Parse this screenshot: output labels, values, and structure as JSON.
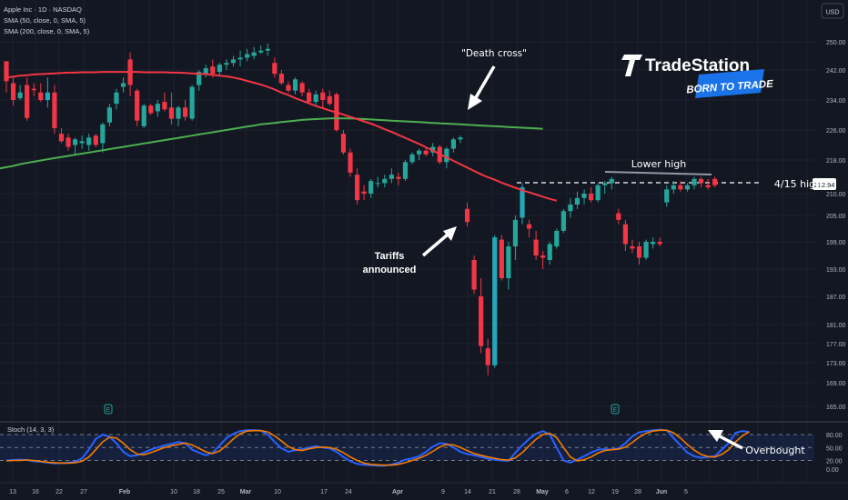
{
  "header": {
    "symbol": "Apple Inc · 1D · NASDAQ",
    "sma50": "SMA (50, close, 0, SMA, 5)",
    "sma200": "SMA (200, close, 0, SMA, 5)",
    "currency": "USD"
  },
  "brand": {
    "name": "TradeStation",
    "tagline": "BORN TO TRADE"
  },
  "annotations": {
    "death_cross": "\"Death cross\"",
    "tariffs_1": "Tariffs",
    "tariffs_2": "announced",
    "lower_high": "Lower high",
    "high_415": "4/15 high",
    "overbought": "Overbought"
  },
  "last_price": "212.94",
  "earnings_marker": "E",
  "colors": {
    "up": "#26a69a",
    "down": "#f23645",
    "teal": "#089981",
    "sma50": "#f23645",
    "sma200": "#4caf50",
    "stoch_k": "#2962ff",
    "stoch_d": "#f57c00"
  },
  "chart_data": {
    "type": "candlestick",
    "y_ticks": [
      250.0,
      242.0,
      234.0,
      226.0,
      218.0,
      210.0,
      205.0,
      199.0,
      193.0,
      187.0,
      181.0,
      177.0,
      173.0,
      169.0,
      165.0
    ],
    "x_ticks": [
      "13",
      "16",
      "22",
      "27",
      "Feb",
      "10",
      "18",
      "25",
      "Mar",
      "10",
      "17",
      "24",
      "Apr",
      "9",
      "14",
      "21",
      "28",
      "May",
      "6",
      "12",
      "19",
      "28",
      "Jun",
      "5"
    ],
    "ohlc": [
      [
        244.5,
        244.0,
        236.0,
        239.0
      ],
      [
        238.5,
        240.0,
        232.5,
        234.0
      ],
      [
        234.5,
        238.0,
        234.0,
        236.0
      ],
      [
        238.0,
        240.0,
        228.5,
        229.2
      ],
      [
        237.0,
        238.5,
        235.0,
        236.6
      ],
      [
        236.0,
        238.5,
        233.5,
        234.0
      ],
      [
        234.0,
        240.0,
        232.0,
        236.0
      ],
      [
        236.0,
        238.0,
        225.0,
        226.5
      ],
      [
        225.0,
        226.5,
        222.5,
        223.0
      ],
      [
        224.0,
        225.0,
        220.5,
        221.5
      ],
      [
        222.0,
        224.0,
        219.5,
        223.5
      ],
      [
        222.5,
        224.5,
        221.0,
        223.0
      ],
      [
        222.0,
        225.0,
        220.5,
        224.0
      ],
      [
        224.5,
        225.0,
        221.5,
        222.0
      ],
      [
        222.5,
        228.0,
        220.0,
        227.5
      ],
      [
        228.0,
        233.0,
        227.0,
        232.0
      ],
      [
        233.0,
        237.0,
        231.5,
        236.0
      ],
      [
        237.5,
        240.0,
        236.0,
        238.5
      ],
      [
        245.0,
        247.0,
        235.0,
        238.0
      ],
      [
        236.5,
        237.0,
        227.0,
        228.5
      ],
      [
        227.0,
        233.0,
        226.5,
        232.5
      ],
      [
        232.5,
        233.0,
        230.0,
        230.5
      ],
      [
        231.0,
        234.0,
        229.5,
        233.0
      ],
      [
        233.5,
        236.0,
        231.0,
        231.5
      ],
      [
        232.0,
        236.0,
        227.5,
        229.0
      ],
      [
        229.0,
        232.5,
        227.0,
        232.0
      ],
      [
        232.0,
        234.0,
        228.5,
        229.5
      ],
      [
        229.0,
        238.0,
        228.5,
        237.5
      ],
      [
        238.0,
        242.0,
        236.5,
        241.5
      ],
      [
        241.0,
        243.5,
        240.0,
        242.5
      ],
      [
        243.0,
        245.0,
        240.0,
        241.0
      ],
      [
        241.5,
        244.0,
        240.5,
        243.5
      ],
      [
        243.5,
        245.0,
        242.0,
        244.0
      ],
      [
        244.0,
        246.0,
        243.0,
        245.0
      ],
      [
        245.0,
        247.5,
        243.0,
        245.5
      ],
      [
        245.5,
        248.0,
        244.5,
        246.5
      ],
      [
        246.0,
        248.5,
        245.0,
        247.0
      ],
      [
        247.0,
        249.0,
        246.5,
        247.5
      ],
      [
        247.5,
        249.5,
        246.0,
        248.0
      ],
      [
        244.0,
        245.5,
        240.0,
        241.0
      ],
      [
        241.0,
        242.0,
        238.0,
        238.5
      ],
      [
        238.0,
        239.0,
        236.0,
        236.5
      ],
      [
        236.5,
        240.0,
        235.5,
        239.5
      ],
      [
        238.5,
        239.0,
        235.0,
        236.0
      ],
      [
        236.0,
        237.0,
        233.0,
        233.5
      ],
      [
        233.5,
        236.5,
        232.5,
        235.5
      ],
      [
        236.0,
        237.0,
        232.0,
        234.0
      ],
      [
        235.0,
        236.5,
        232.5,
        233.0
      ],
      [
        235.5,
        236.0,
        225.5,
        226.0
      ],
      [
        225.0,
        226.0,
        219.5,
        220.0
      ],
      [
        220.0,
        221.0,
        214.0,
        215.0
      ],
      [
        214.5,
        216.0,
        207.5,
        208.5
      ],
      [
        210.5,
        212.0,
        208.5,
        210.0
      ],
      [
        210.0,
        213.5,
        209.0,
        213.0
      ],
      [
        212.5,
        214.0,
        211.5,
        212.5
      ],
      [
        212.5,
        214.5,
        211.5,
        213.5
      ],
      [
        213.5,
        216.0,
        212.5,
        214.5
      ],
      [
        214.0,
        215.0,
        212.0,
        213.5
      ],
      [
        213.5,
        218.0,
        213.0,
        217.5
      ],
      [
        217.5,
        220.0,
        217.0,
        219.5
      ],
      [
        219.5,
        221.0,
        218.0,
        220.5
      ],
      [
        220.5,
        221.5,
        219.0,
        219.5
      ],
      [
        220.0,
        222.5,
        219.0,
        221.5
      ],
      [
        221.5,
        222.0,
        217.0,
        217.5
      ],
      [
        217.5,
        221.5,
        216.0,
        221.0
      ],
      [
        221.0,
        224.0,
        220.0,
        223.5
      ],
      [
        223.5,
        224.5,
        222.5,
        224.0
      ],
      [
        206.5,
        208.0,
        202.5,
        203.5
      ],
      [
        195.0,
        196.0,
        187.5,
        188.5
      ],
      [
        187.0,
        191.0,
        175.0,
        176.5
      ],
      [
        176.0,
        178.0,
        170.5,
        172.5
      ],
      [
        172.5,
        200.5,
        172.0,
        200.0
      ],
      [
        199.5,
        200.5,
        190.5,
        191.0
      ],
      [
        191.0,
        199.0,
        188.5,
        198.0
      ],
      [
        198.0,
        205.0,
        195.0,
        204.0
      ],
      [
        204.5,
        212.5,
        203.0,
        211.5
      ],
      [
        203.0,
        204.0,
        200.0,
        202.0
      ],
      [
        199.5,
        201.5,
        195.0,
        196.0
      ],
      [
        196.0,
        197.0,
        193.0,
        195.5
      ],
      [
        195.0,
        199.0,
        194.0,
        198.5
      ],
      [
        198.0,
        202.0,
        197.5,
        201.5
      ],
      [
        201.5,
        206.5,
        201.0,
        206.0
      ],
      [
        206.0,
        209.0,
        204.5,
        207.5
      ],
      [
        207.5,
        210.5,
        206.5,
        209.0
      ],
      [
        209.0,
        211.0,
        207.5,
        210.0
      ],
      [
        210.0,
        211.5,
        208.0,
        208.5
      ],
      [
        208.5,
        212.5,
        208.0,
        212.0
      ],
      [
        212.0,
        213.0,
        210.0,
        212.5
      ],
      [
        212.5,
        214.0,
        211.0,
        213.5
      ],
      [
        205.5,
        206.5,
        203.0,
        204.0
      ],
      [
        203.0,
        204.0,
        197.0,
        198.5
      ],
      [
        198.0,
        199.5,
        196.5,
        197.5
      ],
      [
        198.0,
        199.0,
        194.0,
        195.5
      ],
      [
        195.5,
        199.5,
        195.0,
        199.0
      ],
      [
        198.5,
        200.0,
        197.5,
        199.0
      ],
      [
        199.0,
        200.0,
        198.0,
        198.5
      ],
      [
        208.0,
        212.0,
        207.0,
        211.0
      ],
      [
        211.0,
        213.0,
        210.0,
        212.0
      ],
      [
        212.0,
        213.0,
        210.5,
        211.0
      ],
      [
        211.0,
        212.5,
        210.5,
        212.0
      ],
      [
        212.0,
        214.0,
        211.0,
        213.5
      ],
      [
        213.5,
        214.0,
        211.5,
        212.5
      ],
      [
        212.0,
        213.5,
        211.0,
        211.5
      ],
      [
        213.5,
        214.0,
        211.5,
        212.0
      ]
    ],
    "sma50": [
      240.0,
      240.2,
      240.5,
      240.6,
      240.8,
      240.9,
      241.0,
      241.1,
      241.2,
      241.3,
      241.3,
      241.4,
      241.4,
      241.4,
      241.5,
      241.5,
      241.5,
      241.5,
      241.5,
      241.5,
      241.4,
      241.4,
      241.4,
      241.4,
      241.3,
      241.3,
      241.2,
      241.1,
      241.0,
      240.9,
      240.7,
      240.5,
      240.3,
      240.0,
      239.6,
      239.1,
      238.6,
      238.1,
      237.5,
      236.8,
      236.0,
      235.3,
      234.5,
      233.8,
      233.1,
      232.4,
      231.8,
      231.2,
      230.7,
      230.1,
      229.5,
      228.9,
      228.3,
      227.7,
      227.0,
      226.2,
      225.5,
      224.7,
      223.9,
      223.1,
      222.3,
      221.4,
      220.5,
      219.6,
      218.7,
      217.8,
      217.0,
      216.2,
      215.4,
      214.6,
      213.9,
      213.3,
      212.6,
      212.0,
      211.4,
      210.8,
      210.3,
      209.8,
      209.3,
      208.8,
      208.4
    ],
    "sma200": [
      216.0,
      216.3,
      216.6,
      217.0,
      217.3,
      217.6,
      217.9,
      218.2,
      218.5,
      218.8,
      219.1,
      219.4,
      219.7,
      220.0,
      220.3,
      220.6,
      220.9,
      221.2,
      221.5,
      221.8,
      222.1,
      222.4,
      222.7,
      223.0,
      223.3,
      223.6,
      223.9,
      224.2,
      224.5,
      224.8,
      225.1,
      225.4,
      225.7,
      226.0,
      226.3,
      226.6,
      226.9,
      227.2,
      227.5,
      227.7,
      227.9,
      228.1,
      228.3,
      228.5,
      228.7,
      228.8,
      228.9,
      229.0,
      229.1,
      229.1,
      229.1,
      229.1,
      229.0,
      228.9,
      228.8,
      228.7,
      228.6,
      228.5,
      228.4,
      228.3,
      228.2,
      228.1,
      228.0,
      227.9,
      227.8,
      227.7,
      227.6,
      227.5,
      227.4,
      227.3,
      227.2,
      227.1,
      227.0,
      226.9,
      226.8,
      226.7,
      226.6,
      226.5,
      226.4,
      226.3
    ],
    "indicator": {
      "name": "Stoch (14, 3, 3)",
      "y_ticks": [
        80.0,
        50.0,
        20.0,
        0.0
      ],
      "k": [
        20,
        21,
        22,
        21,
        18,
        17,
        15,
        13,
        14,
        15,
        17,
        25,
        45,
        70,
        80,
        75,
        60,
        40,
        30,
        32,
        38,
        45,
        50,
        55,
        58,
        63,
        60,
        45,
        38,
        32,
        38,
        55,
        72,
        82,
        88,
        90,
        90,
        89,
        80,
        63,
        48,
        40,
        44,
        46,
        50,
        53,
        50,
        48,
        40,
        28,
        18,
        12,
        10,
        9,
        8,
        8,
        11,
        15,
        22,
        25,
        30,
        40,
        52,
        60,
        58,
        50,
        40,
        35,
        32,
        28,
        24,
        22,
        20,
        19,
        38,
        55,
        70,
        82,
        88,
        80,
        50,
        20,
        15,
        22,
        30,
        38,
        45,
        46,
        45,
        48,
        60,
        76,
        85,
        88,
        90,
        91,
        90,
        72,
        55,
        38,
        30,
        26,
        28,
        30,
        45,
        60,
        84,
        88,
        86
      ],
      "d": [
        19,
        20,
        20,
        21,
        20,
        18,
        16,
        15,
        14,
        14,
        15,
        18,
        28,
        45,
        63,
        74,
        72,
        60,
        45,
        35,
        33,
        38,
        44,
        50,
        54,
        57,
        60,
        56,
        48,
        40,
        36,
        42,
        55,
        70,
        82,
        88,
        89,
        89,
        86,
        77,
        65,
        52,
        45,
        43,
        47,
        50,
        51,
        50,
        46,
        38,
        28,
        20,
        14,
        11,
        10,
        9,
        9,
        11,
        15,
        20,
        25,
        32,
        41,
        51,
        57,
        56,
        50,
        43,
        36,
        32,
        28,
        25,
        22,
        21,
        26,
        38,
        54,
        69,
        80,
        83,
        73,
        50,
        28,
        19,
        22,
        28,
        37,
        43,
        45,
        46,
        51,
        62,
        74,
        83,
        88,
        90,
        90,
        84,
        72,
        57,
        44,
        34,
        29,
        28,
        34,
        45,
        63,
        77,
        86
      ]
    }
  }
}
